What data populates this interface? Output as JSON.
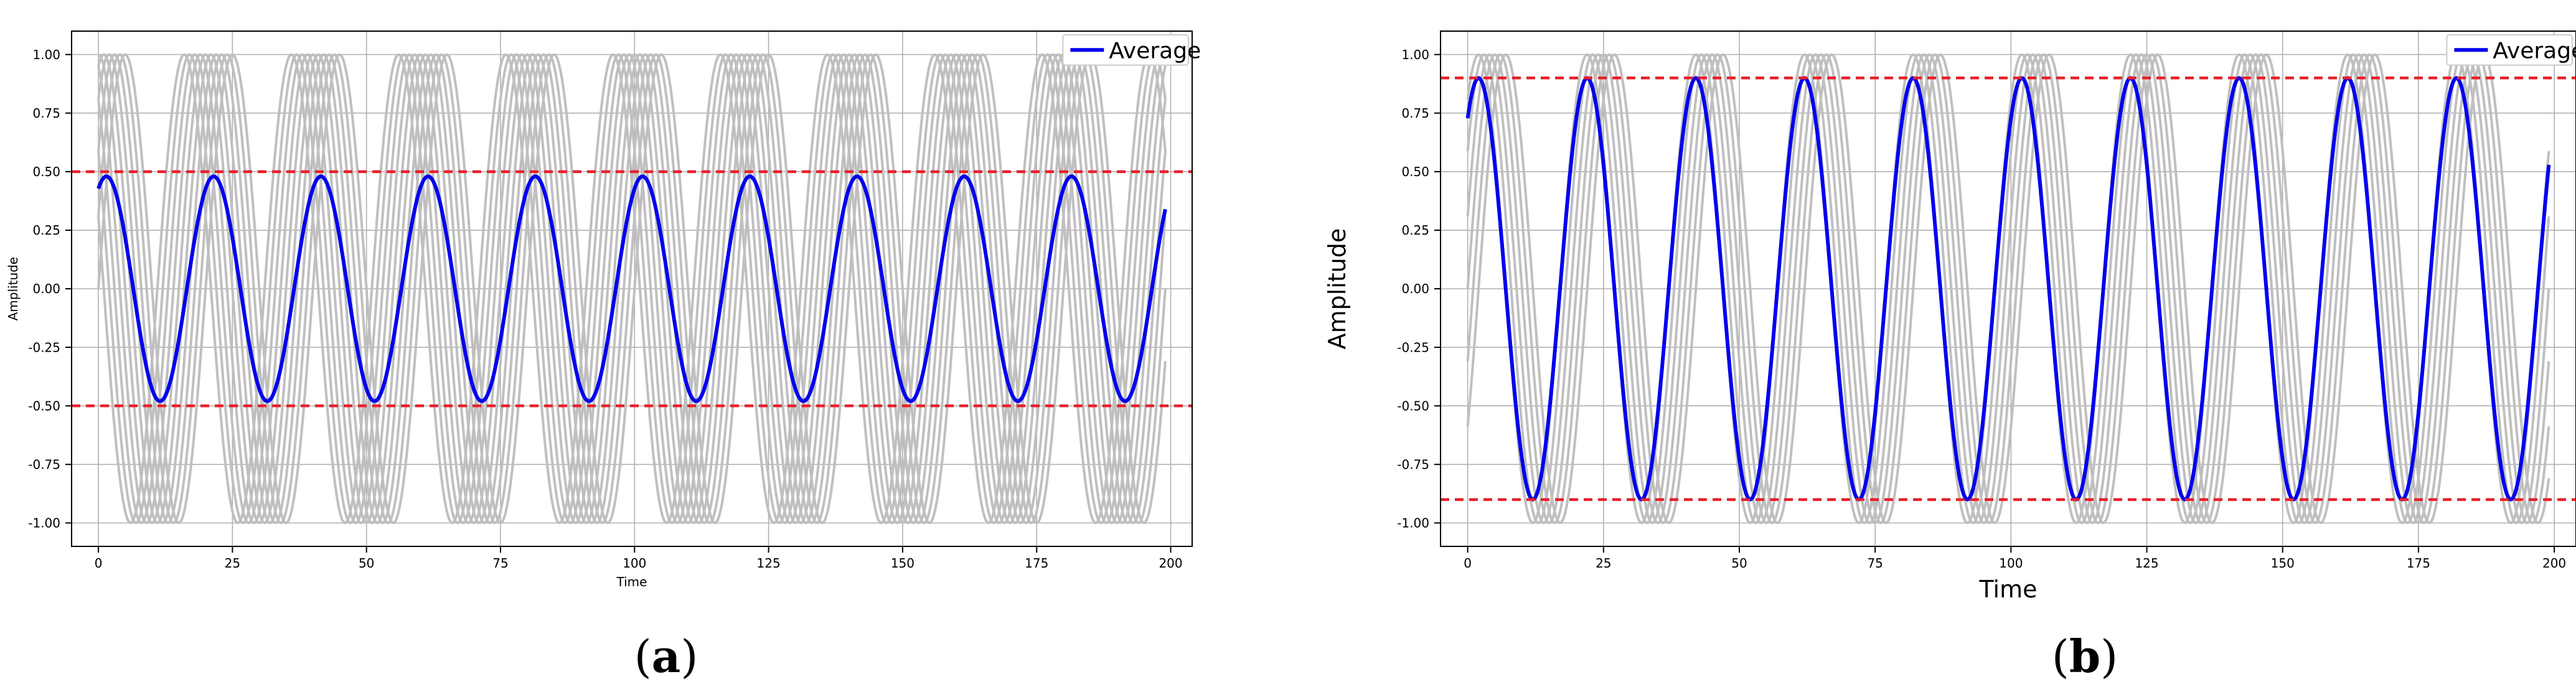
{
  "chart_data": [
    {
      "type": "line",
      "panel_label": "a",
      "xlabel": "Time",
      "ylabel": "Amplitude",
      "xlim": [
        -5,
        204
      ],
      "ylim": [
        -1.1,
        1.1
      ],
      "xticks": [
        0,
        25,
        50,
        75,
        100,
        125,
        150,
        175,
        200
      ],
      "yticks": [
        -1.0,
        -0.75,
        -0.5,
        -0.25,
        0.0,
        0.25,
        0.5,
        0.75,
        1.0
      ],
      "grid": true,
      "legend": {
        "position": "top-right",
        "entries": [
          "Average"
        ]
      },
      "background_waves": {
        "count": 10,
        "amplitude": 1.0,
        "period": 20,
        "x_range": [
          0,
          199
        ],
        "phase_offsets_steps": [
          0,
          1,
          2,
          3,
          4,
          5,
          6,
          7,
          8,
          9
        ]
      },
      "average": {
        "name": "Average",
        "amplitude": 0.48,
        "period": 20,
        "peak_x": 1.5,
        "x_range": [
          0,
          199
        ],
        "start_value": 0.45,
        "end_value": 0.37
      },
      "threshold_lines": [
        0.5,
        -0.5
      ],
      "colors": {
        "average": "#0000ee",
        "background": "#bfbfbf",
        "threshold": "#e8202a"
      }
    },
    {
      "type": "line",
      "panel_label": "b",
      "xlabel": "Time",
      "ylabel": "Amplitude",
      "xlim": [
        -5,
        204
      ],
      "ylim": [
        -1.1,
        1.1
      ],
      "xticks": [
        0,
        25,
        50,
        75,
        100,
        125,
        150,
        175,
        200
      ],
      "yticks": [
        -1.0,
        -0.75,
        -0.5,
        -0.25,
        0.0,
        0.25,
        0.5,
        0.75,
        1.0
      ],
      "grid": true,
      "legend": {
        "position": "top-right",
        "entries": [
          "Average"
        ]
      },
      "background_waves": {
        "count": 6,
        "amplitude": 1.0,
        "period": 20,
        "x_range": [
          0,
          199
        ],
        "phase_offsets_steps": [
          -2,
          -1,
          0,
          1,
          2,
          3
        ]
      },
      "average": {
        "name": "Average",
        "amplitude": 0.9,
        "period": 20,
        "peak_x": 2,
        "x_range": [
          0,
          199
        ],
        "start_value": 0.55,
        "end_value": 0.57
      },
      "threshold_lines": [
        0.9,
        -0.9
      ],
      "colors": {
        "average": "#0000ee",
        "background": "#bfbfbf",
        "threshold": "#e8202a"
      }
    }
  ]
}
